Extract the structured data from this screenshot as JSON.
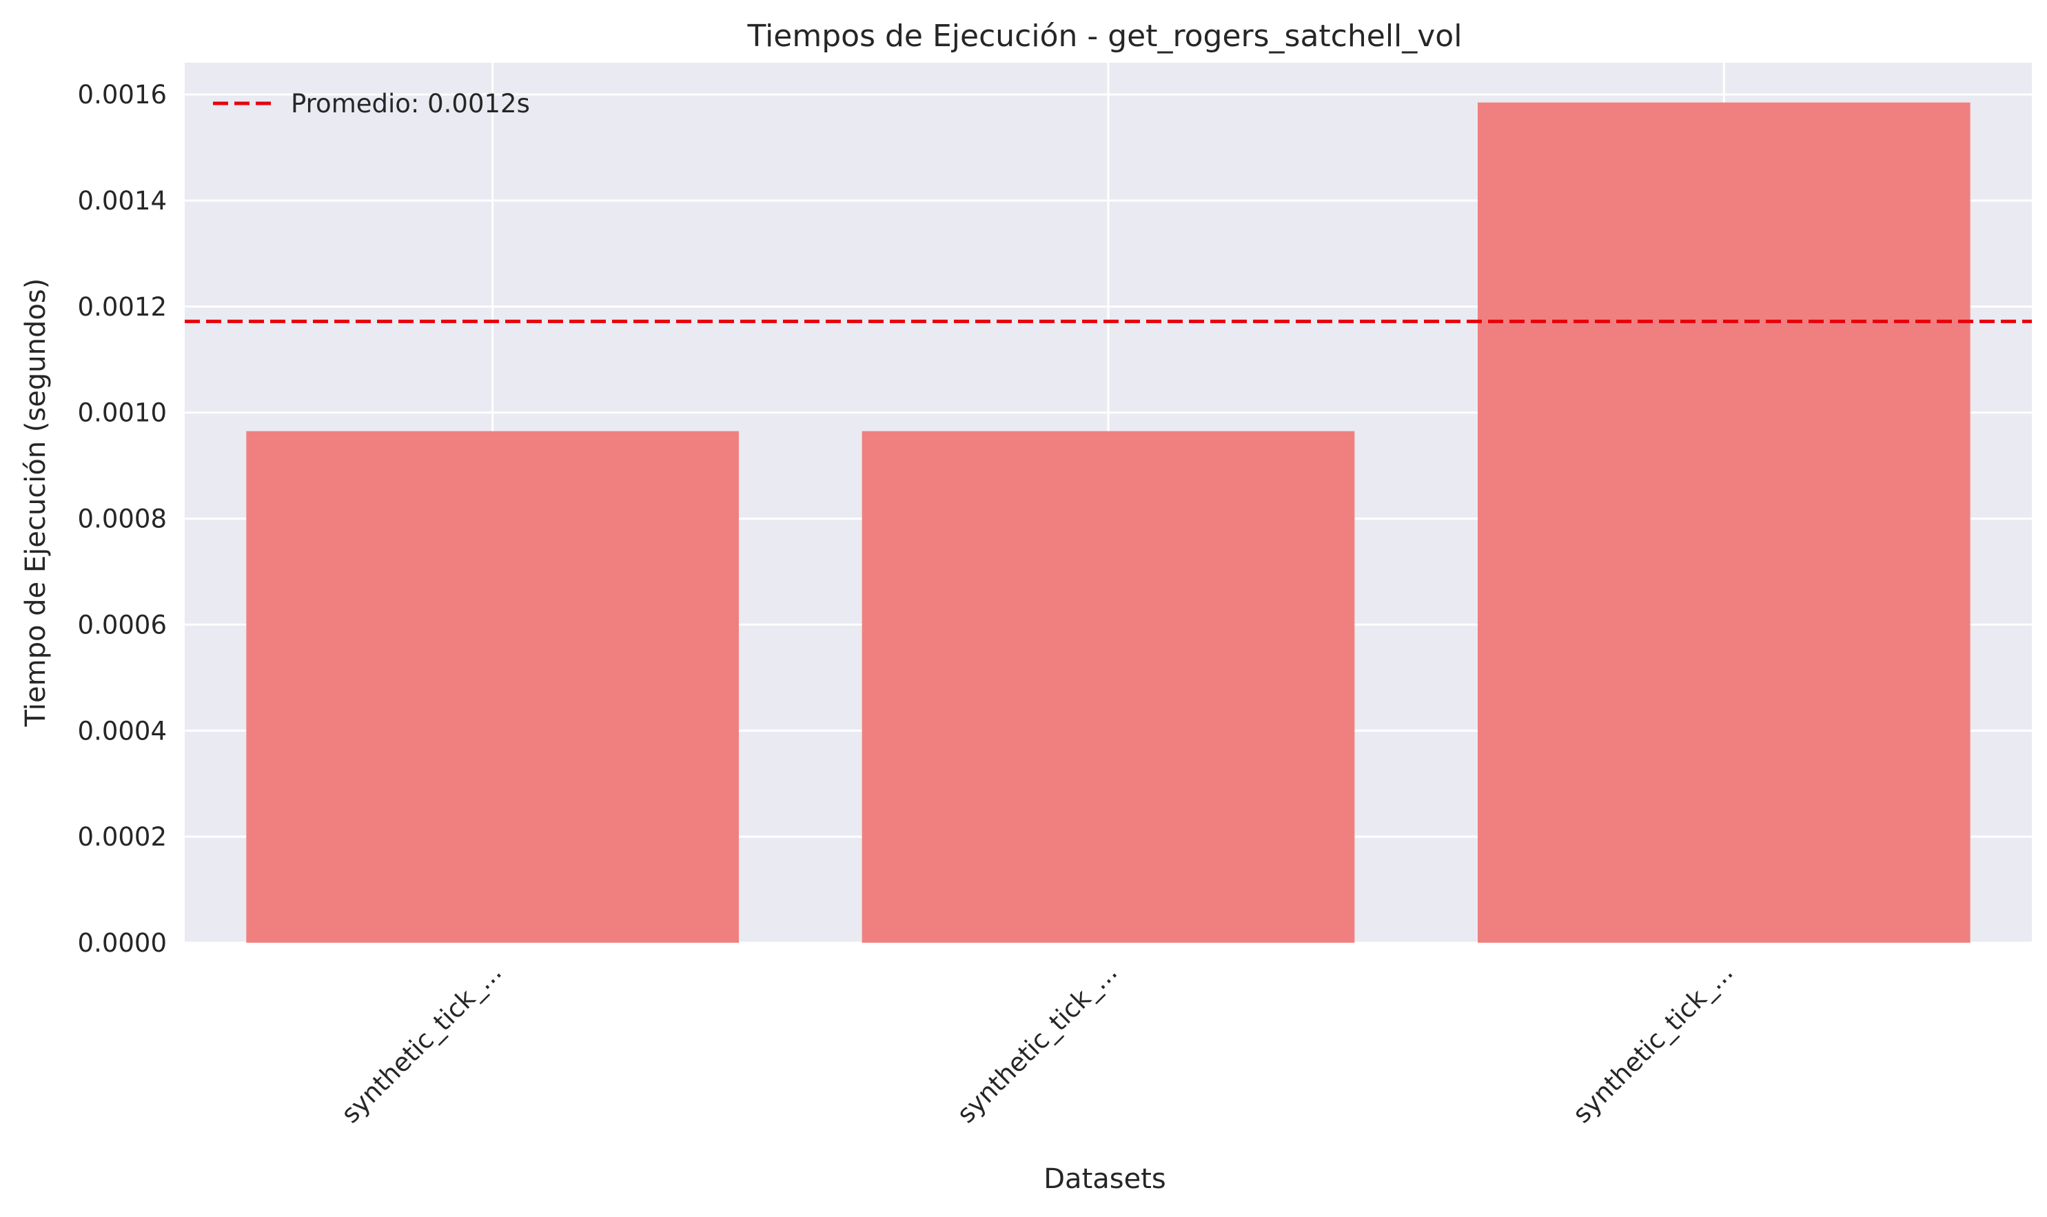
{
  "chart_data": {
    "type": "bar",
    "title": "Tiempos de Ejecución - get_rogers_satchell_vol",
    "xlabel": "Datasets",
    "ylabel": "Tiempo de Ejecución (segundos)",
    "categories": [
      "synthetic_tick_...",
      "synthetic_tick_...",
      "synthetic_tick_..."
    ],
    "values": [
      0.000965,
      0.000965,
      0.001585
    ],
    "ylim": [
      0,
      0.00166
    ],
    "yticks": [
      0.0,
      0.0002,
      0.0004,
      0.0006,
      0.0008,
      0.001,
      0.0012,
      0.0014,
      0.0016
    ],
    "ytick_labels": [
      "0.0000",
      "0.0002",
      "0.0004",
      "0.0006",
      "0.0008",
      "0.0010",
      "0.0012",
      "0.0014",
      "0.0016"
    ],
    "average": 0.001172,
    "legend": {
      "label": "Promedio: 0.0012s",
      "position": "top-left"
    },
    "grid": true,
    "colors": {
      "bar": "#f08080",
      "average_line": "#e8000b",
      "plot_bg": "#eaeaf2",
      "grid": "#ffffff"
    }
  }
}
